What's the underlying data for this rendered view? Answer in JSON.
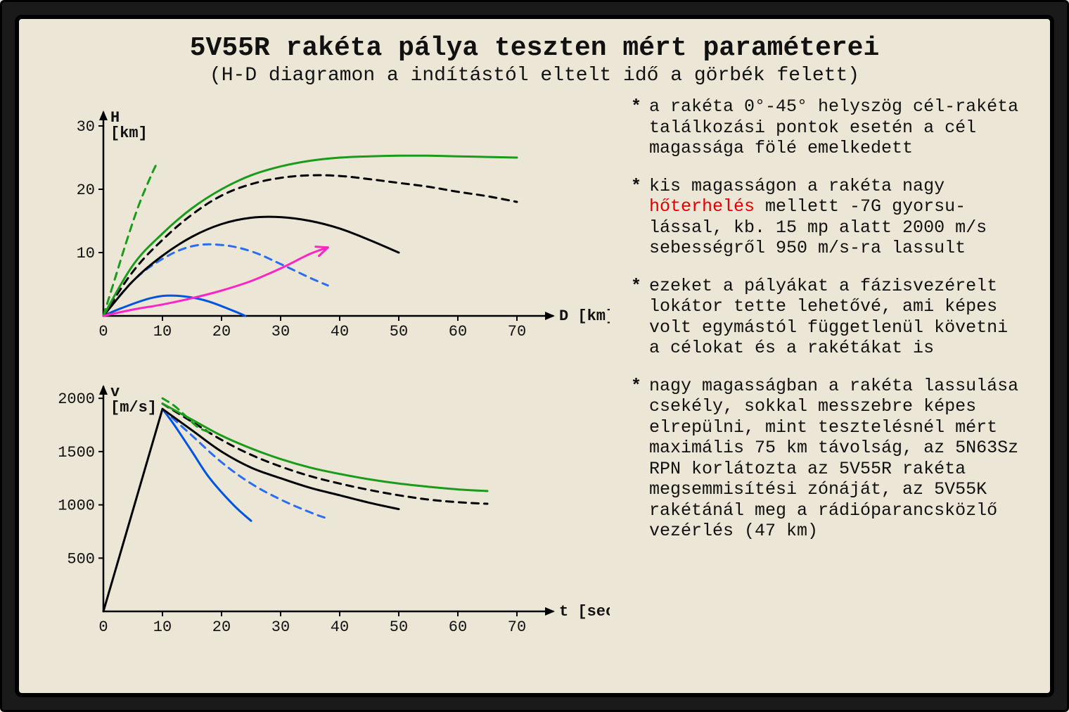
{
  "title": "5V55R rakéta pálya teszten mért paraméterei",
  "subtitle": "(H-D diagramon a indítástól eltelt idő a görbék felett)",
  "colors": {
    "background": "#ece6d7",
    "frame": "#000000",
    "axis": "#000000",
    "text": "#111111",
    "highlight": "#e40000",
    "series": {
      "blue_solid": "#0055e0",
      "blue_dash": "#2a6df0",
      "black_solid": "#000000",
      "black_dash": "#000000",
      "green_solid": "#1a9b1a",
      "green_dash": "#1a9b1a",
      "pink_arrow": "#ff25c3"
    }
  },
  "chart_top": {
    "type": "line",
    "x_label": "D [km]",
    "y_label": "H\n[km]",
    "xlim": [
      0,
      75
    ],
    "ylim": [
      0,
      32
    ],
    "xticks": [
      0,
      10,
      20,
      30,
      40,
      50,
      60,
      70
    ],
    "yticks": [
      10,
      20,
      30
    ],
    "stroke_width": 3,
    "dash_pattern": "10 8",
    "series": [
      {
        "id": "blue_solid",
        "style": "solid",
        "color": "#0055e0",
        "points": [
          [
            0,
            0
          ],
          [
            3,
            1.2
          ],
          [
            8,
            2.8
          ],
          [
            12,
            3.2
          ],
          [
            17,
            2.5
          ],
          [
            22,
            0.8
          ],
          [
            24,
            0
          ]
        ]
      },
      {
        "id": "blue_dash",
        "style": "dashed",
        "color": "#2a6df0",
        "points": [
          [
            0,
            0
          ],
          [
            5,
            5.5
          ],
          [
            10,
            9
          ],
          [
            15,
            11
          ],
          [
            20,
            11.2
          ],
          [
            25,
            10.2
          ],
          [
            30,
            8.2
          ],
          [
            35,
            6
          ],
          [
            38,
            4.8
          ]
        ]
      },
      {
        "id": "black_solid",
        "style": "solid",
        "color": "#000000",
        "points": [
          [
            0,
            0
          ],
          [
            5,
            5.5
          ],
          [
            10,
            9.5
          ],
          [
            15,
            12.5
          ],
          [
            20,
            14.5
          ],
          [
            25,
            15.5
          ],
          [
            30,
            15.6
          ],
          [
            35,
            15
          ],
          [
            40,
            13.8
          ],
          [
            45,
            12
          ],
          [
            50,
            10
          ]
        ]
      },
      {
        "id": "black_dash",
        "style": "dashed",
        "color": "#000000",
        "points": [
          [
            0,
            0
          ],
          [
            5,
            7
          ],
          [
            10,
            12
          ],
          [
            15,
            16
          ],
          [
            20,
            19
          ],
          [
            25,
            20.8
          ],
          [
            30,
            21.8
          ],
          [
            35,
            22.2
          ],
          [
            40,
            22.1
          ],
          [
            45,
            21.6
          ],
          [
            50,
            21
          ],
          [
            55,
            20.4
          ],
          [
            60,
            19.6
          ],
          [
            65,
            18.9
          ],
          [
            70,
            18
          ]
        ]
      },
      {
        "id": "green_solid",
        "style": "solid",
        "color": "#1a9b1a",
        "points": [
          [
            0,
            0
          ],
          [
            5,
            8
          ],
          [
            10,
            13
          ],
          [
            15,
            17
          ],
          [
            20,
            20
          ],
          [
            25,
            22.2
          ],
          [
            30,
            23.6
          ],
          [
            35,
            24.5
          ],
          [
            40,
            25
          ],
          [
            45,
            25.2
          ],
          [
            50,
            25.3
          ],
          [
            55,
            25.3
          ],
          [
            60,
            25.2
          ],
          [
            65,
            25.1
          ],
          [
            70,
            25
          ]
        ]
      },
      {
        "id": "green_dash",
        "style": "dashed",
        "color": "#1a9b1a",
        "points": [
          [
            0,
            0
          ],
          [
            2,
            6
          ],
          [
            4,
            12
          ],
          [
            6,
            17.5
          ],
          [
            8,
            22
          ],
          [
            9,
            24
          ]
        ]
      },
      {
        "id": "pink_arrow",
        "style": "solid",
        "color": "#ff25c3",
        "arrow": true,
        "points": [
          [
            0,
            0
          ],
          [
            5,
            1
          ],
          [
            10,
            1.8
          ],
          [
            15,
            2.8
          ],
          [
            20,
            4
          ],
          [
            25,
            5.5
          ],
          [
            30,
            7.5
          ],
          [
            35,
            9.8
          ],
          [
            38,
            10.8
          ]
        ]
      }
    ]
  },
  "chart_bottom": {
    "type": "line",
    "x_label": "t [sec]",
    "y_label": "v\n[m/s]",
    "xlim": [
      0,
      75
    ],
    "ylim": [
      0,
      2100
    ],
    "xticks": [
      0,
      10,
      20,
      30,
      40,
      50,
      60,
      70
    ],
    "yticks": [
      500,
      1000,
      1500,
      2000
    ],
    "stroke_width": 3,
    "dash_pattern": "10 8",
    "series": [
      {
        "id": "rise",
        "style": "solid",
        "color": "#000000",
        "points": [
          [
            0,
            0
          ],
          [
            5,
            950
          ],
          [
            10,
            1900
          ]
        ]
      },
      {
        "id": "blue_solid",
        "style": "solid",
        "color": "#0055e0",
        "points": [
          [
            10,
            1900
          ],
          [
            12,
            1750
          ],
          [
            15,
            1500
          ],
          [
            18,
            1250
          ],
          [
            22,
            1000
          ],
          [
            25,
            850
          ]
        ]
      },
      {
        "id": "blue_dash",
        "style": "dashed",
        "color": "#2a6df0",
        "points": [
          [
            10,
            1900
          ],
          [
            15,
            1650
          ],
          [
            20,
            1400
          ],
          [
            25,
            1200
          ],
          [
            30,
            1050
          ],
          [
            35,
            930
          ],
          [
            38,
            870
          ]
        ]
      },
      {
        "id": "black_solid",
        "style": "solid",
        "color": "#000000",
        "points": [
          [
            10,
            1900
          ],
          [
            15,
            1700
          ],
          [
            20,
            1500
          ],
          [
            25,
            1350
          ],
          [
            30,
            1250
          ],
          [
            35,
            1160
          ],
          [
            40,
            1090
          ],
          [
            45,
            1020
          ],
          [
            50,
            960
          ]
        ]
      },
      {
        "id": "black_dash",
        "style": "dashed",
        "color": "#000000",
        "points": [
          [
            10,
            1950
          ],
          [
            15,
            1780
          ],
          [
            20,
            1610
          ],
          [
            25,
            1470
          ],
          [
            30,
            1360
          ],
          [
            35,
            1270
          ],
          [
            40,
            1200
          ],
          [
            45,
            1140
          ],
          [
            50,
            1090
          ],
          [
            55,
            1050
          ],
          [
            60,
            1025
          ],
          [
            65,
            1010
          ]
        ]
      },
      {
        "id": "green_solid",
        "style": "solid",
        "color": "#1a9b1a",
        "points": [
          [
            10,
            1950
          ],
          [
            15,
            1800
          ],
          [
            20,
            1650
          ],
          [
            25,
            1530
          ],
          [
            30,
            1430
          ],
          [
            35,
            1350
          ],
          [
            40,
            1290
          ],
          [
            45,
            1240
          ],
          [
            50,
            1200
          ],
          [
            55,
            1170
          ],
          [
            60,
            1145
          ],
          [
            65,
            1130
          ]
        ]
      },
      {
        "id": "green_dash",
        "style": "dashed",
        "color": "#1a9b1a",
        "points": [
          [
            10,
            2000
          ],
          [
            12,
            1930
          ],
          [
            14,
            1830
          ],
          [
            16,
            1730
          ],
          [
            18,
            1680
          ]
        ]
      }
    ]
  },
  "notes": [
    {
      "html": "a rakéta 0°-45° helyszög cél-rakéta találkozási pontok esetén a cél magassága fölé emelkedett"
    },
    {
      "html": "kis magasságon a rakéta nagy <span class=\"red\">hőterhelés</span> mellett -7G gyorsu&shy;lással, kb. 15 mp alatt 2000 m/s sebességről 950 m/s-ra lassult"
    },
    {
      "html": "ezeket a pályákat a fázis&shy;vezérelt lokátor tette lehetővé, ami képes volt egymástól függetlenül követni a célokat és a rakétákat is"
    },
    {
      "html": "nagy magasságban a rakéta lassulása csekély, sokkal messzebre képes elrepülni, mint tesztelésnél mért maximális 75 km távolság, az 5N63Sz RPN korlátozta az 5V55R rakéta megsemmisítési zónáját, az 5V55K rakétánál meg a rádió&shy;parancsközlő vezérlés (47 km)"
    }
  ]
}
